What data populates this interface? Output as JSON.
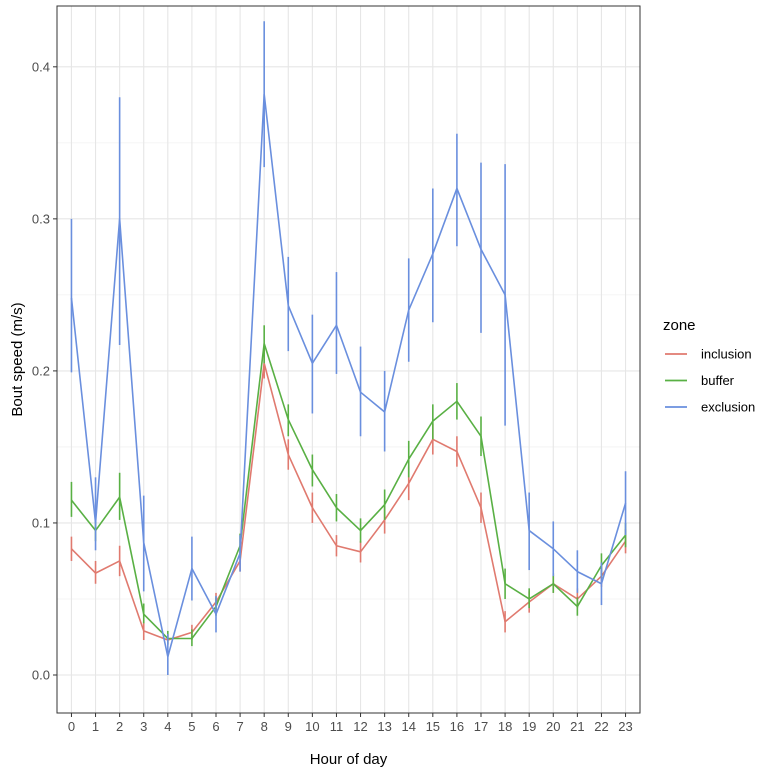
{
  "chart_data": {
    "type": "line",
    "xlabel": "Hour of day",
    "ylabel": "Bout speed (m/s)",
    "x": [
      0,
      1,
      2,
      3,
      4,
      5,
      6,
      7,
      8,
      9,
      10,
      11,
      12,
      13,
      14,
      15,
      16,
      17,
      18,
      19,
      20,
      21,
      22,
      23
    ],
    "x_tick_labels": [
      "0",
      "1",
      "2",
      "3",
      "4",
      "5",
      "6",
      "7",
      "8",
      "9",
      "10",
      "11",
      "12",
      "13",
      "14",
      "15",
      "16",
      "17",
      "18",
      "19",
      "20",
      "21",
      "22",
      "23"
    ],
    "y_ticks": [
      0.0,
      0.1,
      0.2,
      0.3,
      0.4
    ],
    "y_tick_labels": [
      "0.0",
      "0.1",
      "0.2",
      "0.3",
      "0.4"
    ],
    "xlim": [
      -0.6,
      23.6
    ],
    "ylim": [
      -0.025,
      0.44
    ],
    "grid": true,
    "legend": {
      "title": "zone",
      "placement": "right",
      "labels": [
        "inclusion",
        "buffer",
        "exclusion"
      ]
    },
    "series": [
      {
        "name": "inclusion",
        "color": "#E07A6F",
        "values": [
          0.083,
          0.067,
          0.075,
          0.029,
          0.023,
          0.028,
          0.048,
          0.075,
          0.205,
          0.145,
          0.11,
          0.085,
          0.081,
          0.102,
          0.126,
          0.155,
          0.147,
          0.11,
          0.035,
          0.048,
          0.06,
          0.05,
          0.065,
          0.088
        ],
        "lower": [
          0.075,
          0.06,
          0.065,
          0.023,
          0.02,
          0.023,
          0.042,
          0.068,
          0.195,
          0.135,
          0.1,
          0.078,
          0.074,
          0.093,
          0.115,
          0.145,
          0.137,
          0.1,
          0.028,
          0.041,
          0.054,
          0.044,
          0.058,
          0.08
        ],
        "upper": [
          0.091,
          0.075,
          0.085,
          0.035,
          0.027,
          0.033,
          0.054,
          0.082,
          0.216,
          0.155,
          0.12,
          0.092,
          0.088,
          0.111,
          0.137,
          0.165,
          0.157,
          0.12,
          0.042,
          0.055,
          0.066,
          0.057,
          0.072,
          0.096
        ]
      },
      {
        "name": "buffer",
        "color": "#59B044",
        "values": [
          0.115,
          0.095,
          0.117,
          0.04,
          0.024,
          0.024,
          0.045,
          0.085,
          0.218,
          0.168,
          0.135,
          0.11,
          0.095,
          0.112,
          0.142,
          0.167,
          0.18,
          0.157,
          0.06,
          0.05,
          0.06,
          0.045,
          0.072,
          0.092
        ],
        "lower": [
          0.104,
          0.088,
          0.102,
          0.034,
          0.02,
          0.019,
          0.039,
          0.077,
          0.205,
          0.157,
          0.124,
          0.101,
          0.087,
          0.102,
          0.13,
          0.155,
          0.168,
          0.144,
          0.05,
          0.044,
          0.054,
          0.039,
          0.064,
          0.084
        ],
        "upper": [
          0.127,
          0.103,
          0.133,
          0.047,
          0.029,
          0.03,
          0.051,
          0.093,
          0.23,
          0.178,
          0.145,
          0.119,
          0.103,
          0.122,
          0.154,
          0.178,
          0.192,
          0.17,
          0.07,
          0.057,
          0.067,
          0.051,
          0.08,
          0.1
        ]
      },
      {
        "name": "exclusion",
        "color": "#6A8FDE",
        "values": [
          0.248,
          0.1,
          0.3,
          0.087,
          0.012,
          0.07,
          0.04,
          0.08,
          0.382,
          0.243,
          0.205,
          0.23,
          0.186,
          0.173,
          0.24,
          0.277,
          0.32,
          0.28,
          0.25,
          0.095,
          0.083,
          0.068,
          0.06,
          0.113
        ],
        "lower": [
          0.199,
          0.082,
          0.217,
          0.055,
          0.0,
          0.049,
          0.028,
          0.068,
          0.334,
          0.213,
          0.172,
          0.198,
          0.157,
          0.147,
          0.206,
          0.232,
          0.282,
          0.225,
          0.164,
          0.069,
          0.065,
          0.054,
          0.046,
          0.092
        ],
        "upper": [
          0.3,
          0.13,
          0.38,
          0.118,
          0.027,
          0.091,
          0.052,
          0.092,
          0.43,
          0.275,
          0.237,
          0.265,
          0.216,
          0.2,
          0.274,
          0.32,
          0.356,
          0.337,
          0.336,
          0.12,
          0.101,
          0.082,
          0.074,
          0.134
        ]
      }
    ]
  }
}
